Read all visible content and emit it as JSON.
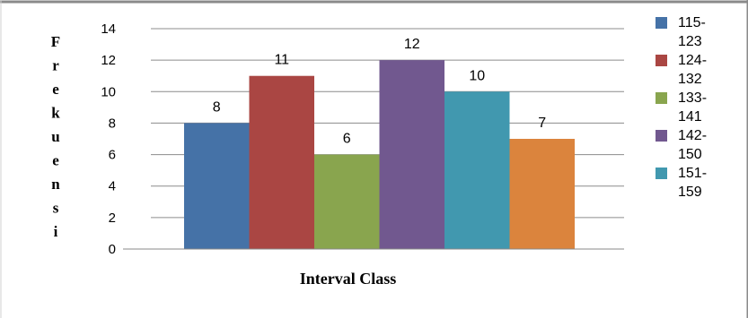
{
  "chart_data": {
    "type": "bar",
    "xlabel": "Interval Class",
    "ylabel": "Frekuensi",
    "ylim": [
      0,
      14
    ],
    "yticks": [
      0,
      2,
      4,
      6,
      8,
      10,
      12,
      14
    ],
    "grid": true,
    "legend_position": "right",
    "series": [
      {
        "name": "115-123",
        "value": 8,
        "color": "#4572A7"
      },
      {
        "name": "124-132",
        "value": 11,
        "color": "#AA4643"
      },
      {
        "name": "133-141",
        "value": 6,
        "color": "#89A54E"
      },
      {
        "name": "142-150",
        "value": 12,
        "color": "#71588F"
      },
      {
        "name": "151-159",
        "value": 10,
        "color": "#4198AF"
      },
      {
        "name": "",
        "value": 7,
        "color": "#DB843D"
      }
    ],
    "legend_entries": [
      {
        "line1": "115-",
        "line2": "123",
        "color": "#4572A7"
      },
      {
        "line1": "124-",
        "line2": "132",
        "color": "#AA4643"
      },
      {
        "line1": "133-",
        "line2": "141",
        "color": "#89A54E"
      },
      {
        "line1": "142-",
        "line2": "150",
        "color": "#71588F"
      },
      {
        "line1": "151-",
        "line2": "159",
        "color": "#4198AF"
      }
    ]
  }
}
